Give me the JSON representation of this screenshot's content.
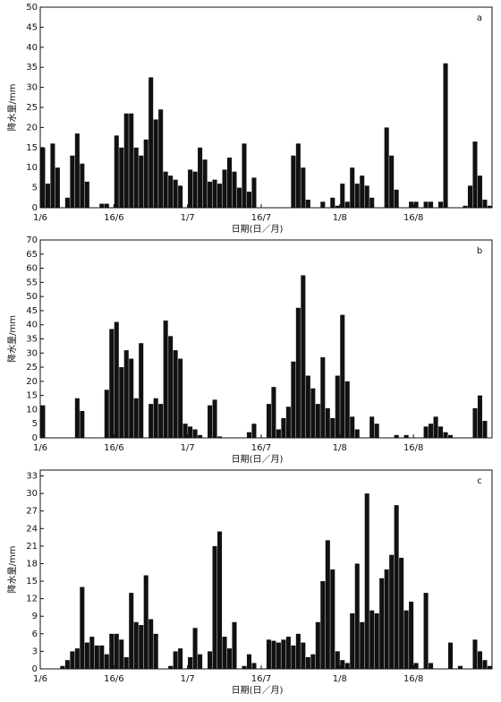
{
  "chart_data": [
    {
      "type": "bar",
      "label": "a",
      "ylabel": "降水量/mm",
      "xlabel": "日期(日／月)",
      "color": "#111111",
      "categories": [
        "1/6",
        null,
        null,
        null,
        null,
        null,
        null,
        null,
        null,
        null,
        null,
        null,
        null,
        null,
        null,
        "16/6",
        null,
        null,
        null,
        null,
        null,
        null,
        null,
        null,
        null,
        null,
        null,
        null,
        null,
        null,
        "1/7",
        null,
        null,
        null,
        null,
        null,
        null,
        null,
        null,
        null,
        null,
        null,
        null,
        null,
        null,
        "16/7",
        null,
        null,
        null,
        null,
        null,
        null,
        null,
        null,
        null,
        null,
        null,
        null,
        null,
        null,
        null,
        "1/8",
        null,
        null,
        null,
        null,
        null,
        null,
        null,
        null,
        null,
        null,
        null,
        null,
        null,
        null,
        "16/8",
        null,
        null,
        null,
        null,
        null,
        null,
        null,
        null,
        null,
        null,
        null,
        null,
        null,
        null,
        null
      ],
      "values": [
        15,
        6,
        16,
        10,
        0,
        2.5,
        13,
        18.5,
        11,
        6.5,
        0,
        0,
        1,
        1,
        0,
        18,
        15,
        23.5,
        23.5,
        15,
        13,
        17,
        32.5,
        22,
        24.5,
        9,
        8,
        7,
        5.5,
        0,
        9.5,
        9,
        15,
        12,
        6.5,
        7,
        6,
        9.5,
        12.5,
        9,
        5,
        16,
        4,
        7.5,
        0,
        0,
        0,
        0,
        0,
        0,
        0,
        13,
        16,
        10,
        2,
        0,
        0,
        1.5,
        0,
        2.5,
        0.5,
        6,
        1.5,
        10,
        6,
        8,
        5.5,
        2.5,
        0,
        0,
        20,
        13,
        4.5,
        0,
        0,
        1.5,
        1.5,
        0,
        1.5,
        1.5,
        0,
        1.5,
        36,
        0,
        0,
        0,
        0.5,
        5.5,
        16.5,
        8,
        2,
        0.5
      ],
      "ylim": [
        0,
        50
      ],
      "yticks": [
        0,
        5,
        10,
        15,
        20,
        25,
        30,
        35,
        40,
        45,
        50
      ]
    },
    {
      "type": "bar",
      "label": "b",
      "ylabel": "降水量/mm",
      "xlabel": "日期(日／月)",
      "color": "#111111",
      "categories": [
        "1/6",
        null,
        null,
        null,
        null,
        null,
        null,
        null,
        null,
        null,
        null,
        null,
        null,
        null,
        null,
        "16/6",
        null,
        null,
        null,
        null,
        null,
        null,
        null,
        null,
        null,
        null,
        null,
        null,
        null,
        null,
        "1/7",
        null,
        null,
        null,
        null,
        null,
        null,
        null,
        null,
        null,
        null,
        null,
        null,
        null,
        null,
        "16/7",
        null,
        null,
        null,
        null,
        null,
        null,
        null,
        null,
        null,
        null,
        null,
        null,
        null,
        null,
        null,
        "1/8",
        null,
        null,
        null,
        null,
        null,
        null,
        null,
        null,
        null,
        null,
        null,
        null,
        null,
        null,
        "16/8",
        null,
        null,
        null,
        null,
        null,
        null,
        null,
        null,
        null,
        null,
        null,
        null,
        null,
        null,
        null
      ],
      "values": [
        11.5,
        0,
        0,
        0,
        0,
        0,
        0,
        14,
        9.5,
        0,
        0,
        0,
        0,
        17,
        38.5,
        41,
        25,
        31,
        28,
        14,
        33.5,
        0,
        12,
        14,
        12,
        41.5,
        36,
        31,
        28,
        5,
        4,
        3,
        1,
        0,
        11.5,
        13.5,
        0.5,
        0,
        0,
        0,
        0,
        0,
        2,
        5,
        0,
        0,
        12,
        18,
        3,
        7,
        11,
        27,
        46,
        57.5,
        22,
        17.5,
        12,
        28.5,
        10.5,
        7,
        22,
        43.5,
        20,
        7.5,
        3,
        0,
        0,
        7.5,
        5,
        0,
        0,
        0,
        1,
        0,
        1,
        0,
        0,
        0,
        4,
        5,
        7.5,
        4,
        2,
        1,
        0,
        0,
        0,
        0,
        10.5,
        15,
        6,
        0
      ],
      "ylim": [
        0,
        70
      ],
      "yticks": [
        0,
        5,
        10,
        15,
        20,
        25,
        30,
        35,
        40,
        45,
        50,
        55,
        60,
        65,
        70
      ]
    },
    {
      "type": "bar",
      "label": "c",
      "ylabel": "降水量/mm",
      "xlabel": "日期(日／月)",
      "color": "#111111",
      "categories": [
        "1/6",
        null,
        null,
        null,
        null,
        null,
        null,
        null,
        null,
        null,
        null,
        null,
        null,
        null,
        null,
        "16/6",
        null,
        null,
        null,
        null,
        null,
        null,
        null,
        null,
        null,
        null,
        null,
        null,
        null,
        null,
        "1/7",
        null,
        null,
        null,
        null,
        null,
        null,
        null,
        null,
        null,
        null,
        null,
        null,
        null,
        null,
        "16/7",
        null,
        null,
        null,
        null,
        null,
        null,
        null,
        null,
        null,
        null,
        null,
        null,
        null,
        null,
        null,
        "1/8",
        null,
        null,
        null,
        null,
        null,
        null,
        null,
        null,
        null,
        null,
        null,
        null,
        null,
        null,
        "16/8",
        null,
        null,
        null,
        null,
        null,
        null,
        null,
        null,
        null,
        null,
        null,
        null,
        null,
        null,
        null
      ],
      "values": [
        0,
        0,
        0,
        0,
        0.5,
        1.5,
        3,
        3.5,
        14,
        4.5,
        5.5,
        4,
        4,
        2.5,
        6,
        6,
        5,
        2,
        13,
        8,
        7.5,
        16,
        8.5,
        6,
        0,
        0,
        0.5,
        3,
        3.5,
        0,
        2,
        7,
        2.5,
        0,
        3,
        21,
        23.5,
        5.5,
        3.5,
        8,
        0,
        0.5,
        2.5,
        1,
        0,
        0,
        5,
        4.8,
        4.5,
        5,
        5.5,
        4,
        6,
        4.5,
        2,
        2.5,
        8,
        15,
        22,
        17,
        3,
        1.5,
        1,
        9.5,
        18,
        8,
        30,
        10,
        9.5,
        15.5,
        17,
        19.5,
        28,
        19,
        10,
        11.5,
        1,
        0,
        13,
        1,
        0,
        0,
        0,
        4.5,
        0,
        0.5,
        0,
        0,
        5,
        3,
        1.5,
        0.5
      ],
      "ylim": [
        0,
        34
      ],
      "yticks": [
        0,
        3,
        6,
        9,
        12,
        15,
        18,
        21,
        24,
        27,
        30,
        33
      ]
    }
  ]
}
